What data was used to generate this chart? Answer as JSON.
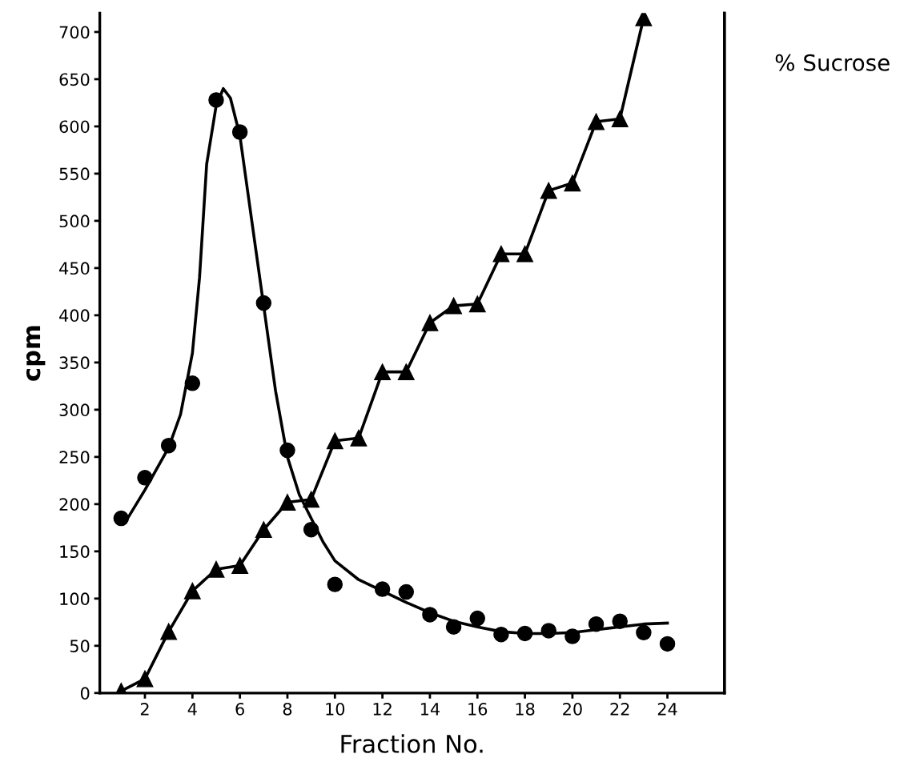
{
  "chart_data": {
    "type": "scatter",
    "xlabel": "Fraction No.",
    "ylabel": "cpm",
    "y2label": "% Sucrose",
    "xlim": [
      0.1,
      26.4
    ],
    "xticks": [
      2,
      4,
      6,
      8,
      10,
      12,
      14,
      16,
      18,
      20,
      22,
      24
    ],
    "ylim": [
      0,
      720
    ],
    "yticks": [
      0,
      50,
      100,
      150,
      200,
      250,
      300,
      350,
      400,
      450,
      500,
      550,
      600,
      650,
      700
    ],
    "x": [
      1,
      2,
      3,
      4,
      5,
      6,
      7,
      8,
      9,
      10,
      11,
      12,
      13,
      14,
      15,
      16,
      17,
      18,
      19,
      20,
      21,
      22,
      23,
      24
    ],
    "grid": false,
    "legend": false,
    "series": [
      {
        "marker": "circle",
        "color": "#000000",
        "values": [
          185,
          228,
          262,
          328,
          628,
          594,
          413,
          257,
          173,
          115,
          null,
          110,
          107,
          83,
          70,
          79,
          62,
          63,
          66,
          60,
          73,
          76,
          64,
          52
        ]
      },
      {
        "type": "line",
        "marker": "none",
        "color": "#000000",
        "x": [
          1.2,
          2,
          3,
          3.5,
          4,
          4.3,
          4.6,
          5,
          5.3,
          5.6,
          6,
          6.5,
          7,
          7.5,
          8,
          8.5,
          9,
          9.5,
          10,
          11,
          12,
          13,
          14,
          15,
          16,
          17,
          18,
          19,
          20,
          21,
          22,
          23,
          24
        ],
        "values": [
          182,
          215,
          260,
          295,
          360,
          440,
          560,
          622,
          640,
          630,
          590,
          500,
          410,
          320,
          250,
          210,
          185,
          160,
          140,
          120,
          108,
          96,
          85,
          76,
          70,
          65,
          63,
          63,
          64,
          67,
          70,
          73,
          74
        ]
      },
      {
        "type": "line",
        "marker": "triangle",
        "color": "#000000",
        "x": [
          1,
          2,
          3,
          4,
          5,
          6,
          7,
          8,
          9,
          10,
          11,
          12,
          13,
          14,
          15,
          16,
          17,
          18,
          19,
          20,
          21,
          22,
          23
        ],
        "values": [
          2,
          15,
          65,
          108,
          131,
          135,
          173,
          202,
          205,
          267,
          270,
          340,
          340,
          392,
          410,
          412,
          465,
          465,
          532,
          540,
          605,
          608,
          715
        ]
      }
    ]
  }
}
